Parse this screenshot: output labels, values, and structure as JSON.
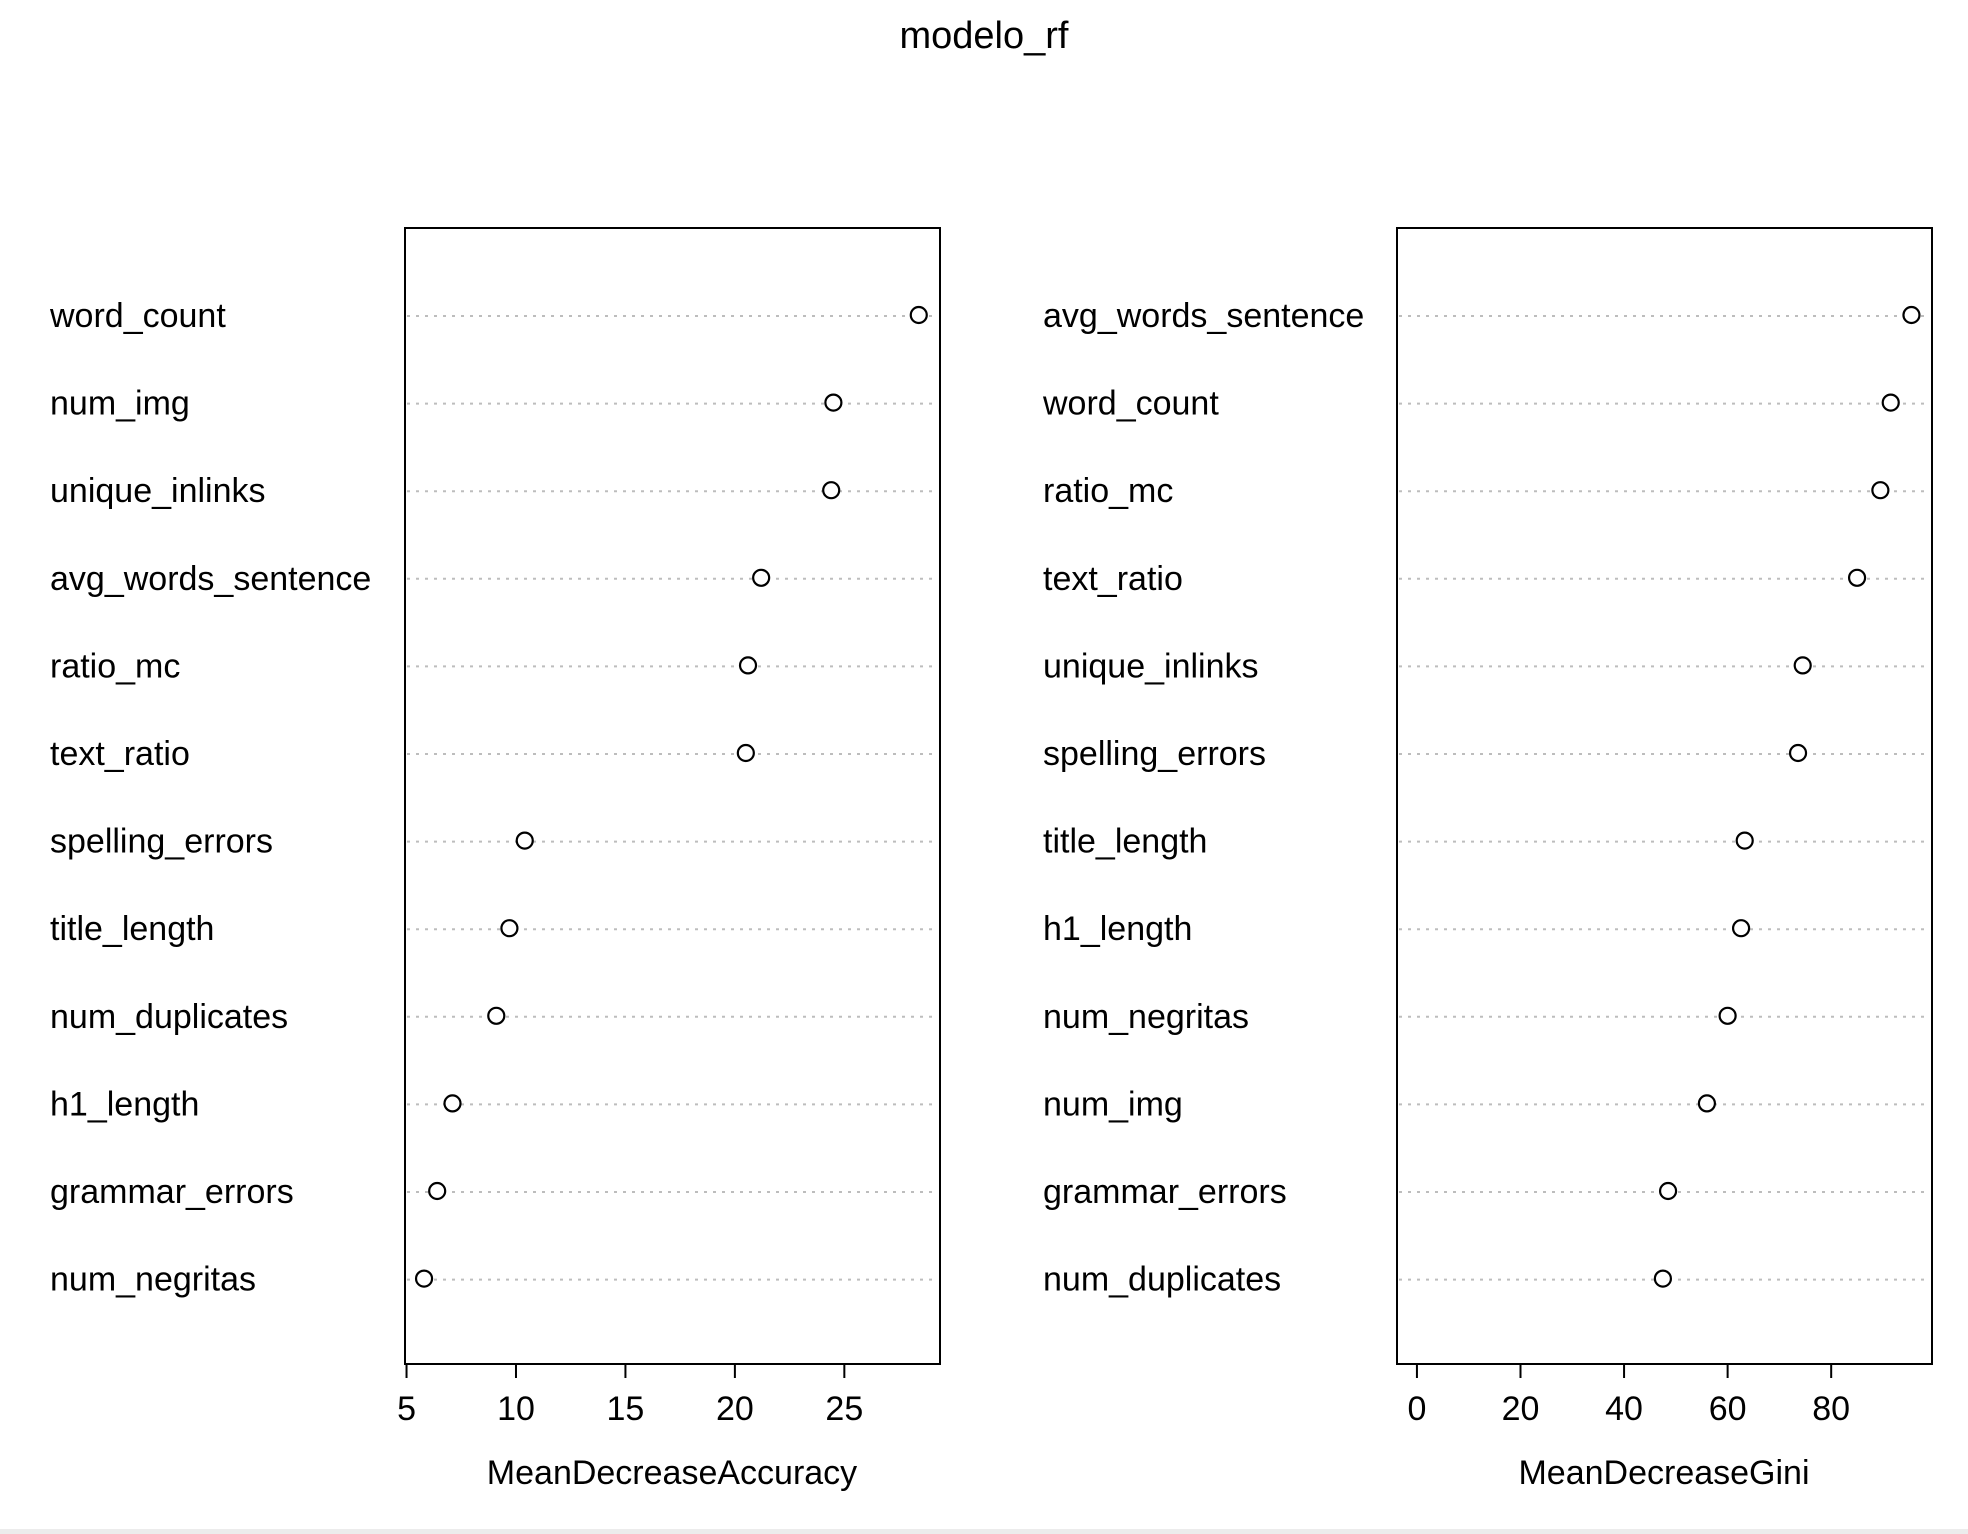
{
  "title": "modelo_rf",
  "colors": {
    "background": "#ffffff",
    "ink": "#000000",
    "grid": "#bdbdbd",
    "point_fill": "#ffffff"
  },
  "chart_data": [
    {
      "type": "scatter",
      "style": "dotchart",
      "xlabel": "MeanDecreaseAccuracy",
      "ylabel": "",
      "xlim": [
        4.93,
        29.37
      ],
      "xticks": [
        5,
        10,
        15,
        20,
        25
      ],
      "grid": "horizontal dotted",
      "categories": [
        "word_count",
        "num_img",
        "unique_inlinks",
        "avg_words_sentence",
        "ratio_mc",
        "text_ratio",
        "spelling_errors",
        "title_length",
        "num_duplicates",
        "h1_length",
        "grammar_errors",
        "num_negritas"
      ],
      "values": [
        28.4,
        24.5,
        24.4,
        21.2,
        20.6,
        20.5,
        10.4,
        9.7,
        9.1,
        7.1,
        6.4,
        5.8
      ]
    },
    {
      "type": "scatter",
      "style": "dotchart",
      "xlabel": "MeanDecreaseGini",
      "ylabel": "",
      "xlim": [
        -3.85,
        99.47
      ],
      "xticks": [
        0,
        20,
        40,
        60,
        80
      ],
      "grid": "horizontal dotted",
      "categories": [
        "avg_words_sentence",
        "word_count",
        "ratio_mc",
        "text_ratio",
        "unique_inlinks",
        "spelling_errors",
        "title_length",
        "h1_length",
        "num_negritas",
        "num_img",
        "grammar_errors",
        "num_duplicates"
      ],
      "values": [
        95.5,
        91.5,
        89.5,
        85.0,
        74.5,
        73.6,
        63.3,
        62.6,
        60.0,
        56.0,
        48.5,
        47.5
      ]
    }
  ]
}
